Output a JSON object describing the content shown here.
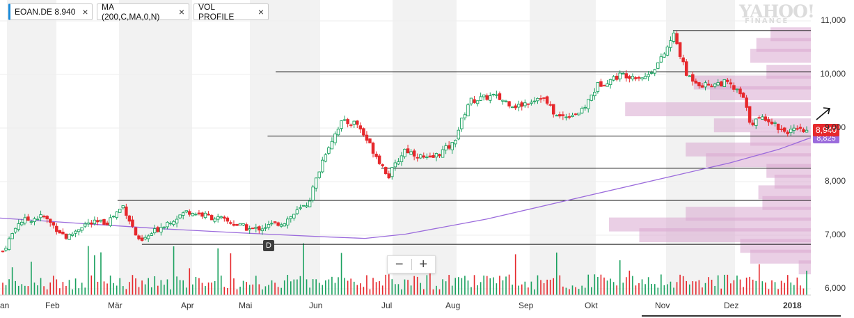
{
  "indicators": [
    {
      "label": "EOAN.DE",
      "value": "8.940"
    },
    {
      "label": "MA (200,C,MA,0,N)"
    },
    {
      "label": "VOL PROFILE"
    }
  ],
  "close_icon": "×",
  "watermark": {
    "brand": "YAHOO!",
    "sub": "FINANCE"
  },
  "zoom": {
    "minus": "−",
    "plus": "+"
  },
  "event_marker": "D",
  "last_price_label": "8,940",
  "ma_label": "8,825",
  "colors": {
    "up": "#1aa15f",
    "down": "#e6282c",
    "ma": "#9b6bdc",
    "profile": "#d8a8d0",
    "band": "#f2f2f2"
  },
  "chart_data": {
    "type": "candlestick",
    "symbol": "EOAN.DE",
    "y_ticks": [
      "11,000",
      "10,000",
      "9,000",
      "8,000",
      "7,000",
      "6,000"
    ],
    "ylim": [
      5.97,
      11.2
    ],
    "x_ticks": [
      "an",
      "Feb",
      "Mär",
      "Apr",
      "Mai",
      "Jun",
      "Jul",
      "Aug",
      "Sep",
      "Okt",
      "Nov",
      "Dez",
      "2018"
    ],
    "last_price": 8.94,
    "ma200_last": 8.825,
    "ma200_path": [
      [
        0,
        7.32
      ],
      [
        0.1,
        7.22
      ],
      [
        0.2,
        7.12
      ],
      [
        0.3,
        7.04
      ],
      [
        0.4,
        6.97
      ],
      [
        0.45,
        6.94
      ],
      [
        0.5,
        7.02
      ],
      [
        0.6,
        7.3
      ],
      [
        0.7,
        7.65
      ],
      [
        0.8,
        8.0
      ],
      [
        0.9,
        8.35
      ],
      [
        0.96,
        8.6
      ],
      [
        1.0,
        8.82
      ]
    ],
    "price_path": [
      [
        0,
        6.7
      ],
      [
        0.02,
        7.25
      ],
      [
        0.05,
        7.35
      ],
      [
        0.08,
        6.95
      ],
      [
        0.1,
        7.2
      ],
      [
        0.13,
        7.25
      ],
      [
        0.15,
        7.55
      ],
      [
        0.17,
        6.85
      ],
      [
        0.2,
        7.2
      ],
      [
        0.23,
        7.45
      ],
      [
        0.27,
        7.3
      ],
      [
        0.31,
        7.1
      ],
      [
        0.35,
        7.25
      ],
      [
        0.38,
        7.6
      ],
      [
        0.4,
        8.5
      ],
      [
        0.42,
        9.1
      ],
      [
        0.44,
        9.1
      ],
      [
        0.46,
        8.6
      ],
      [
        0.48,
        8.1
      ],
      [
        0.5,
        8.6
      ],
      [
        0.53,
        8.4
      ],
      [
        0.56,
        8.7
      ],
      [
        0.58,
        9.5
      ],
      [
        0.61,
        9.6
      ],
      [
        0.64,
        9.4
      ],
      [
        0.67,
        9.6
      ],
      [
        0.69,
        9.2
      ],
      [
        0.72,
        9.3
      ],
      [
        0.74,
        9.8
      ],
      [
        0.77,
        10.0
      ],
      [
        0.8,
        9.95
      ],
      [
        0.82,
        10.3
      ],
      [
        0.835,
        10.75
      ],
      [
        0.85,
        10.0
      ],
      [
        0.87,
        9.8
      ],
      [
        0.9,
        9.85
      ],
      [
        0.92,
        9.6
      ],
      [
        0.93,
        9.1
      ],
      [
        0.95,
        9.2
      ],
      [
        0.97,
        8.95
      ],
      [
        1.0,
        8.94
      ]
    ],
    "horizontal_lines": [
      {
        "price": 10.82,
        "from": 0.83,
        "to": 1.0
      },
      {
        "price": 10.05,
        "from": 0.34,
        "to": 1.0
      },
      {
        "price": 8.85,
        "from": 0.33,
        "to": 1.0
      },
      {
        "price": 8.25,
        "from": 0.47,
        "to": 1.0
      },
      {
        "price": 7.65,
        "from": 0.145,
        "to": 1.0
      },
      {
        "price": 6.83,
        "from": 0.175,
        "to": 1.0
      }
    ],
    "volume_profile": [
      {
        "price": 10.75,
        "weight": 0.2
      },
      {
        "price": 10.55,
        "weight": 0.27
      },
      {
        "price": 10.35,
        "weight": 0.3
      },
      {
        "price": 10.05,
        "weight": 0.22
      },
      {
        "price": 9.85,
        "weight": 0.58
      },
      {
        "price": 9.65,
        "weight": 0.5
      },
      {
        "price": 9.35,
        "weight": 0.92
      },
      {
        "price": 9.05,
        "weight": 0.48
      },
      {
        "price": 8.8,
        "weight": 0.3
      },
      {
        "price": 8.6,
        "weight": 0.62
      },
      {
        "price": 8.4,
        "weight": 0.52
      },
      {
        "price": 8.2,
        "weight": 0.22
      },
      {
        "price": 8.0,
        "weight": 0.18
      },
      {
        "price": 7.8,
        "weight": 0.26
      },
      {
        "price": 7.6,
        "weight": 0.24
      },
      {
        "price": 7.4,
        "weight": 0.62
      },
      {
        "price": 7.2,
        "weight": 1.0
      },
      {
        "price": 7.0,
        "weight": 0.85
      },
      {
        "price": 6.8,
        "weight": 0.35
      },
      {
        "price": 6.6,
        "weight": 0.3
      },
      {
        "price": 6.4,
        "weight": 0.06
      }
    ]
  }
}
